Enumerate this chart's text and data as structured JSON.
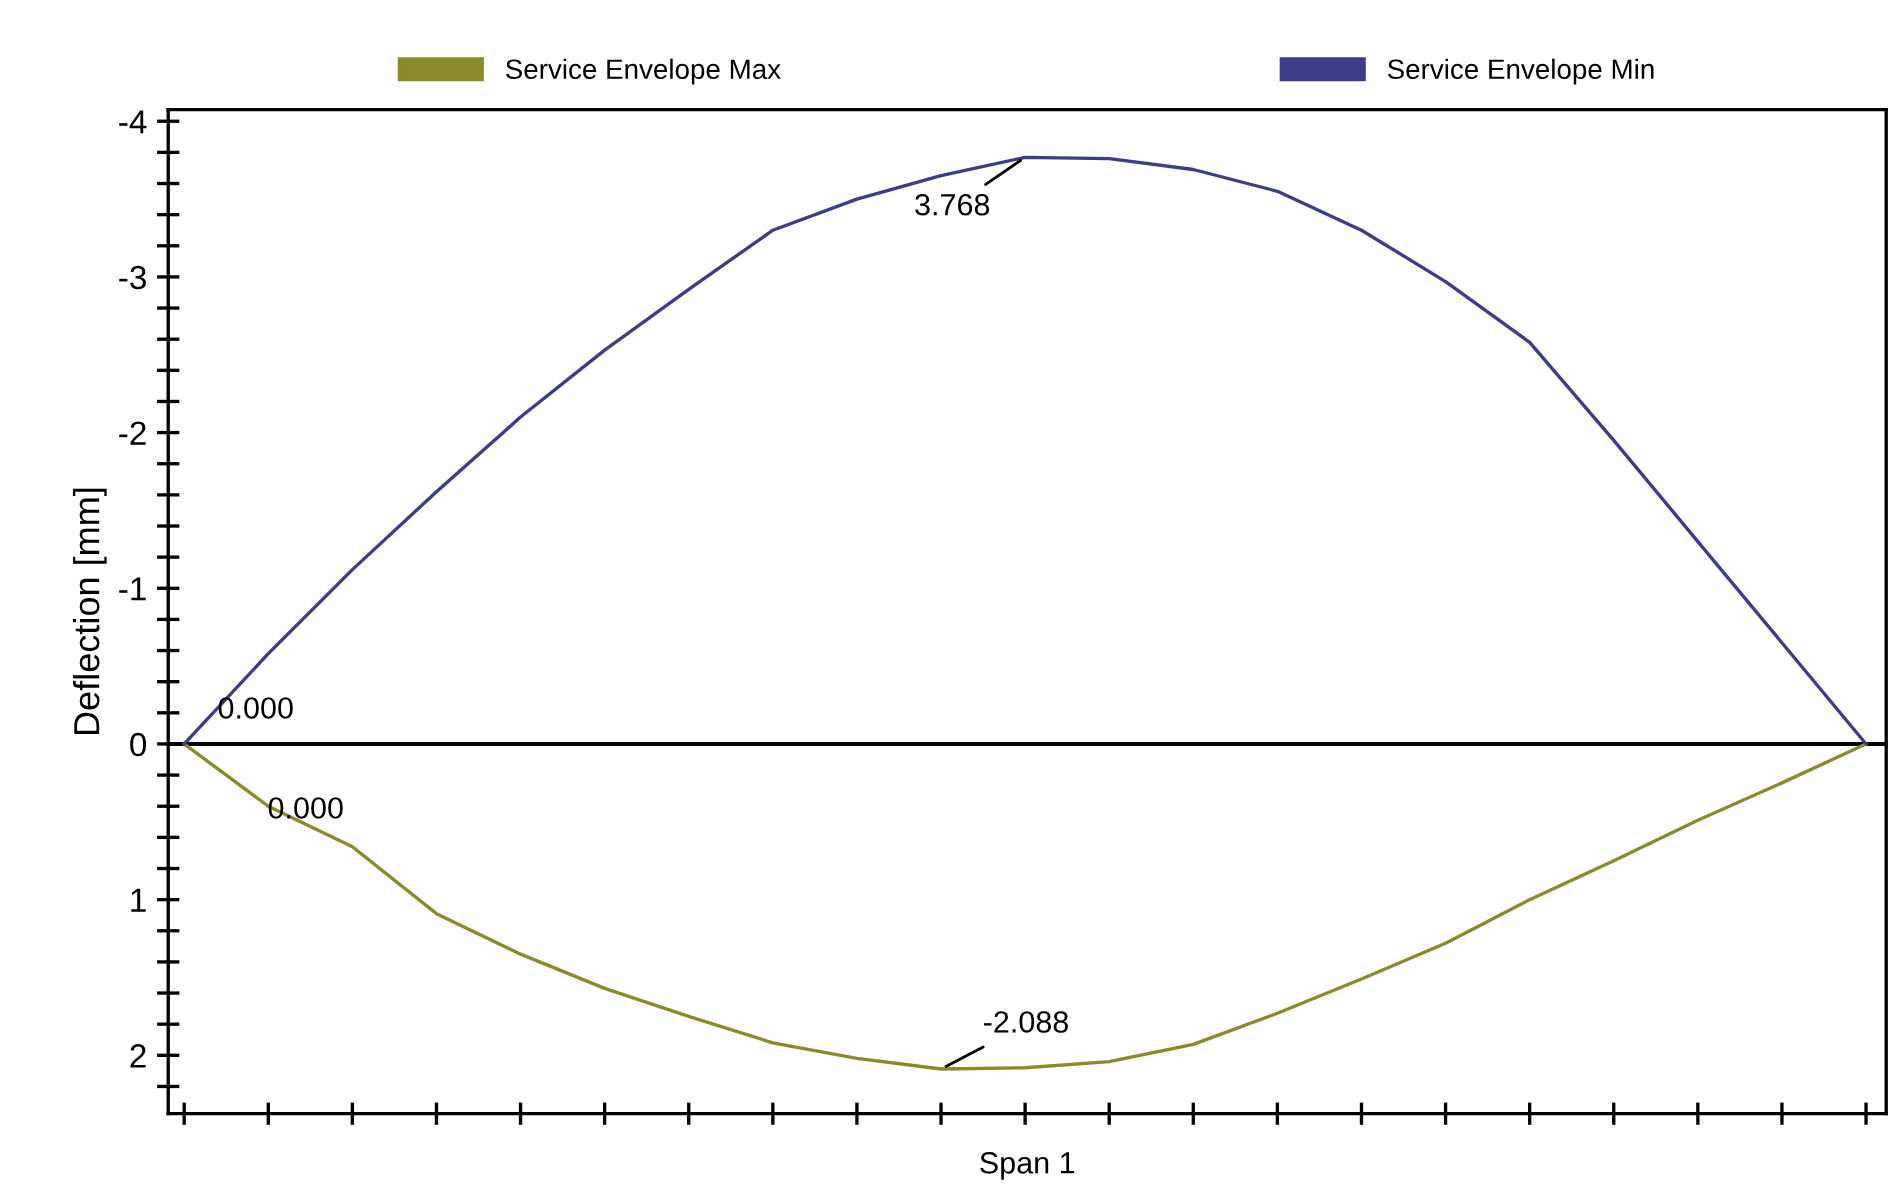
{
  "chart_data": {
    "type": "line",
    "ylabel": "Deflection [mm]",
    "xlabel": "Span 1",
    "categories": [
      null,
      null,
      null,
      null,
      null,
      null,
      null,
      null,
      null,
      null,
      null,
      null,
      null,
      null,
      null,
      null,
      null,
      null,
      null,
      null,
      null
    ],
    "series": [
      {
        "name": "Service Envelope Max",
        "color": "#8a8a2a",
        "values": [
          0,
          0.4,
          0.66,
          1.09,
          1.35,
          1.57,
          1.75,
          1.92,
          2.02,
          2.088,
          2.08,
          2.04,
          1.93,
          1.73,
          1.51,
          1.28,
          1.0,
          0.75,
          0.49,
          0.25,
          0
        ]
      },
      {
        "name": "Service Envelope Min",
        "color": "#3c3c8a",
        "values": [
          0,
          -0.58,
          -1.12,
          -1.62,
          -2.1,
          -2.53,
          -2.92,
          -3.3,
          -3.5,
          -3.65,
          -3.768,
          -3.76,
          -3.69,
          -3.55,
          -3.3,
          -2.97,
          -2.58,
          -1.95,
          -1.3,
          -0.65,
          0
        ]
      }
    ],
    "ylim": [
      2.375,
      -4.075
    ],
    "yticks": [
      -4,
      {
        "value": -3.8,
        "label": null
      },
      {
        "value": -3.6,
        "label": null
      },
      {
        "value": -3.4,
        "label": null
      },
      {
        "value": -3.2,
        "label": null
      },
      -3,
      {
        "value": -2.8,
        "label": null
      },
      {
        "value": -2.6,
        "label": null
      },
      {
        "value": -2.4,
        "label": null
      },
      {
        "value": -2.2,
        "label": null
      },
      -2,
      {
        "value": -1.8,
        "label": null
      },
      {
        "value": -1.6,
        "label": null
      },
      {
        "value": -1.4,
        "label": null
      },
      {
        "value": -1.2,
        "label": null
      },
      -1,
      {
        "value": -0.8,
        "label": null
      },
      {
        "value": -0.6,
        "label": null
      },
      {
        "value": -0.4,
        "label": null
      },
      {
        "value": -0.2,
        "label": null
      },
      0,
      {
        "value": 0.2,
        "label": null
      },
      {
        "value": 0.4,
        "label": null
      },
      {
        "value": 0.6,
        "label": null
      },
      {
        "value": 0.8,
        "label": null
      },
      1,
      {
        "value": 1.2,
        "label": null
      },
      {
        "value": 1.4,
        "label": null
      },
      {
        "value": 1.6,
        "label": null
      },
      {
        "value": 1.8,
        "label": null
      },
      2,
      {
        "value": 2.2,
        "label": null
      }
    ],
    "ref_lines": [
      {
        "axis": "y",
        "value": 0,
        "color": "#000000"
      }
    ],
    "annotations": [
      "0.000",
      "0.000",
      "3.768",
      "-2.088"
    ],
    "legend": "top",
    "grid": false,
    "marker": "none",
    "line_style": "solid"
  }
}
